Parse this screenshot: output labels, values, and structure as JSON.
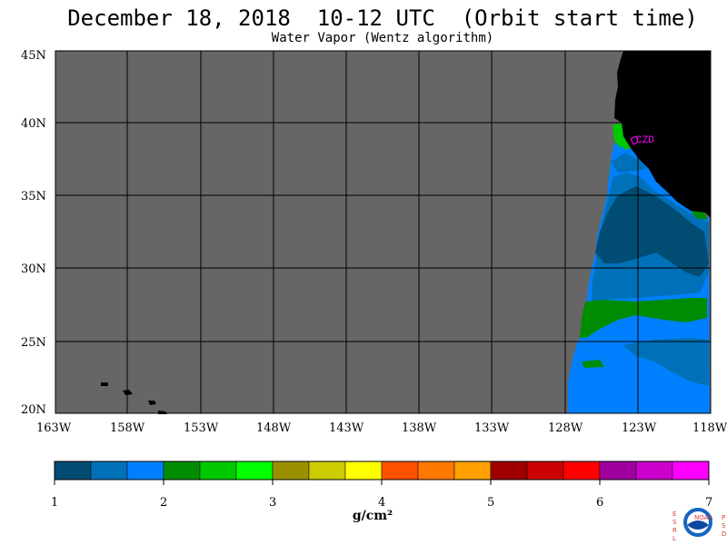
{
  "title": "December 18, 2018  10-12 UTC  (Orbit start time)",
  "subtitle": "Water Vapor (Wentz algorithm)",
  "map": {
    "lat_labels": [
      "45N",
      "40N",
      "35N",
      "30N",
      "25N",
      "20N"
    ],
    "lon_labels": [
      "163W",
      "158W",
      "153W",
      "148W",
      "143W",
      "138W",
      "133W",
      "128W",
      "123W",
      "118W"
    ],
    "station_label": "CZD",
    "colors": {
      "no_data": "#666666",
      "land": "#000000",
      "station": "#ff00ff"
    }
  },
  "colorbar": {
    "tick_labels": [
      "1",
      "2",
      "3",
      "4",
      "5",
      "6",
      "7"
    ],
    "unit": "g/cm²",
    "colors": [
      "#004c73",
      "#0070b8",
      "#0080ff",
      "#008c00",
      "#00c800",
      "#00ff00",
      "#9b9100",
      "#cccc00",
      "#ffff00",
      "#ff5000",
      "#ff7800",
      "#ffa000",
      "#a00000",
      "#cc0000",
      "#ff0000",
      "#a000a0",
      "#cc00cc",
      "#ff00ff"
    ]
  },
  "logos": {
    "left_text": [
      "E",
      "S",
      "R",
      "L"
    ],
    "right_text": [
      "P",
      "S",
      "D"
    ],
    "center_text": "NOAA"
  }
}
